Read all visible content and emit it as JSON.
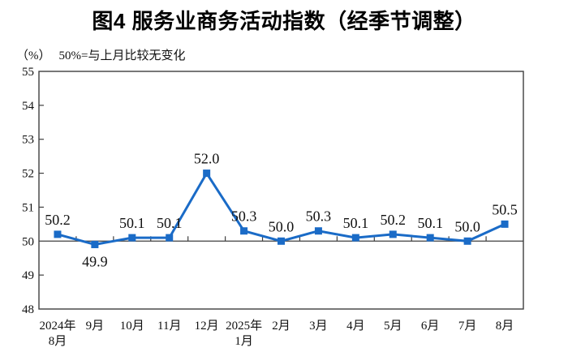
{
  "figure": {
    "title": "图4 服务业商务活动指数（经季节调整）",
    "unit_label": "（%）",
    "axis_note": "50%=与上月比较无变化"
  },
  "chart_data": {
    "type": "line",
    "title": "图4 服务业商务活动指数（经季节调整）",
    "categories": [
      "2024年8月",
      "9月",
      "10月",
      "11月",
      "12月",
      "2025年1月",
      "2月",
      "3月",
      "4月",
      "5月",
      "6月",
      "7月",
      "8月"
    ],
    "category_lines": [
      [
        "2024年",
        "8月"
      ],
      [
        "9月"
      ],
      [
        "10月"
      ],
      [
        "11月"
      ],
      [
        "12月"
      ],
      [
        "2025年",
        "1月"
      ],
      [
        "2月"
      ],
      [
        "3月"
      ],
      [
        "4月"
      ],
      [
        "5月"
      ],
      [
        "6月"
      ],
      [
        "7月"
      ],
      [
        "8月"
      ]
    ],
    "values": [
      50.2,
      49.9,
      50.1,
      50.1,
      52.0,
      50.3,
      50.0,
      50.3,
      50.1,
      50.2,
      50.1,
      50.0,
      50.5
    ],
    "xlabel": "",
    "ylabel": "（%）",
    "ylim": [
      48,
      55
    ],
    "y_ticks": [
      48,
      49,
      50,
      51,
      52,
      53,
      54,
      55
    ],
    "axis_cross_value": 50,
    "reference_note": "50%=与上月比较无变化",
    "grid": false,
    "legend": "none",
    "line_color": "#1a6bc7",
    "axis_color": "#3f3f3f",
    "marker": "square",
    "label_below_indices": [
      1
    ],
    "value_label_format": "one_decimal"
  }
}
